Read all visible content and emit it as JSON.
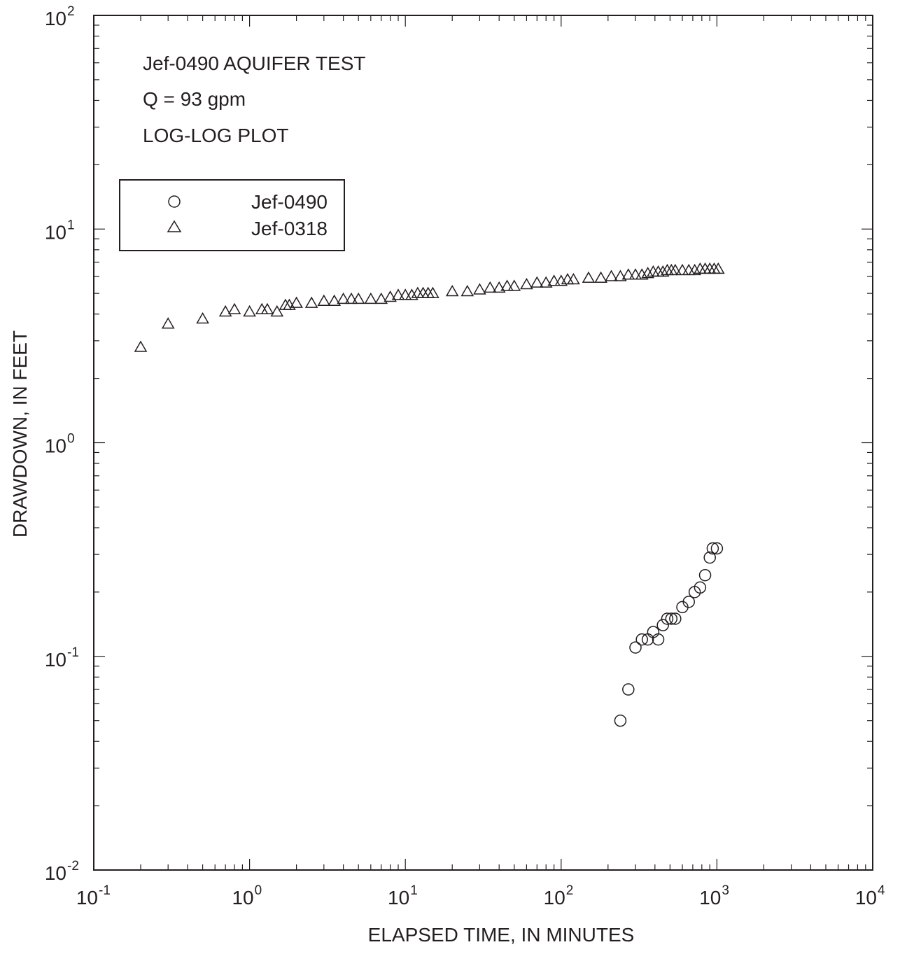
{
  "chart_data": {
    "type": "scatter",
    "title_lines": [
      "Jef-0490 AQUIFER TEST",
      "Q = 93 gpm",
      "LOG-LOG PLOT"
    ],
    "xlabel": "ELAPSED TIME, IN MINUTES",
    "ylabel": "DRAWDOWN, IN FEET",
    "x_scale": "log",
    "y_scale": "log",
    "xlim": [
      0.1,
      10000
    ],
    "ylim": [
      0.01,
      100
    ],
    "x_ticks": [
      {
        "base": "10",
        "exp": "-1"
      },
      {
        "base": "10",
        "exp": "0"
      },
      {
        "base": "10",
        "exp": "1"
      },
      {
        "base": "10",
        "exp": "2"
      },
      {
        "base": "10",
        "exp": "3"
      },
      {
        "base": "10",
        "exp": "4"
      }
    ],
    "y_ticks": [
      {
        "base": "10",
        "exp": "-2"
      },
      {
        "base": "10",
        "exp": "-1"
      },
      {
        "base": "10",
        "exp": "0"
      },
      {
        "base": "10",
        "exp": "1"
      },
      {
        "base": "10",
        "exp": "2"
      }
    ],
    "grid": false,
    "legend_position": "upper-left",
    "series": [
      {
        "name": "Jef-0490",
        "marker": "circle",
        "points": [
          [
            240,
            0.05
          ],
          [
            270,
            0.07
          ],
          [
            300,
            0.11
          ],
          [
            330,
            0.12
          ],
          [
            360,
            0.12
          ],
          [
            390,
            0.13
          ],
          [
            420,
            0.12
          ],
          [
            450,
            0.14
          ],
          [
            480,
            0.15
          ],
          [
            510,
            0.15
          ],
          [
            540,
            0.15
          ],
          [
            600,
            0.17
          ],
          [
            660,
            0.18
          ],
          [
            720,
            0.2
          ],
          [
            780,
            0.21
          ],
          [
            840,
            0.24
          ],
          [
            900,
            0.29
          ],
          [
            940,
            0.32
          ],
          [
            1000,
            0.32
          ]
        ]
      },
      {
        "name": "Jef-0318",
        "marker": "triangle",
        "points": [
          [
            0.2,
            2.8
          ],
          [
            0.3,
            3.6
          ],
          [
            0.5,
            3.8
          ],
          [
            0.7,
            4.1
          ],
          [
            0.8,
            4.2
          ],
          [
            1.0,
            4.1
          ],
          [
            1.2,
            4.2
          ],
          [
            1.3,
            4.2
          ],
          [
            1.5,
            4.1
          ],
          [
            1.7,
            4.4
          ],
          [
            1.8,
            4.4
          ],
          [
            2.0,
            4.5
          ],
          [
            2.5,
            4.5
          ],
          [
            3.0,
            4.6
          ],
          [
            3.5,
            4.6
          ],
          [
            4.0,
            4.7
          ],
          [
            4.5,
            4.7
          ],
          [
            5.0,
            4.7
          ],
          [
            6.0,
            4.7
          ],
          [
            7.0,
            4.7
          ],
          [
            8.0,
            4.8
          ],
          [
            9.0,
            4.9
          ],
          [
            10,
            4.9
          ],
          [
            11,
            4.9
          ],
          [
            12,
            5.0
          ],
          [
            13,
            5.0
          ],
          [
            14,
            5.0
          ],
          [
            15,
            5.0
          ],
          [
            20,
            5.1
          ],
          [
            25,
            5.1
          ],
          [
            30,
            5.2
          ],
          [
            35,
            5.3
          ],
          [
            40,
            5.3
          ],
          [
            45,
            5.4
          ],
          [
            50,
            5.4
          ],
          [
            60,
            5.5
          ],
          [
            70,
            5.6
          ],
          [
            80,
            5.6
          ],
          [
            90,
            5.7
          ],
          [
            100,
            5.7
          ],
          [
            110,
            5.8
          ],
          [
            120,
            5.8
          ],
          [
            150,
            5.9
          ],
          [
            180,
            5.9
          ],
          [
            210,
            6.0
          ],
          [
            240,
            6.0
          ],
          [
            270,
            6.1
          ],
          [
            300,
            6.1
          ],
          [
            330,
            6.1
          ],
          [
            360,
            6.2
          ],
          [
            390,
            6.3
          ],
          [
            420,
            6.3
          ],
          [
            450,
            6.3
          ],
          [
            480,
            6.4
          ],
          [
            510,
            6.4
          ],
          [
            540,
            6.4
          ],
          [
            600,
            6.4
          ],
          [
            660,
            6.4
          ],
          [
            720,
            6.4
          ],
          [
            780,
            6.5
          ],
          [
            840,
            6.5
          ],
          [
            900,
            6.5
          ],
          [
            960,
            6.5
          ],
          [
            1020,
            6.5
          ]
        ]
      }
    ]
  }
}
